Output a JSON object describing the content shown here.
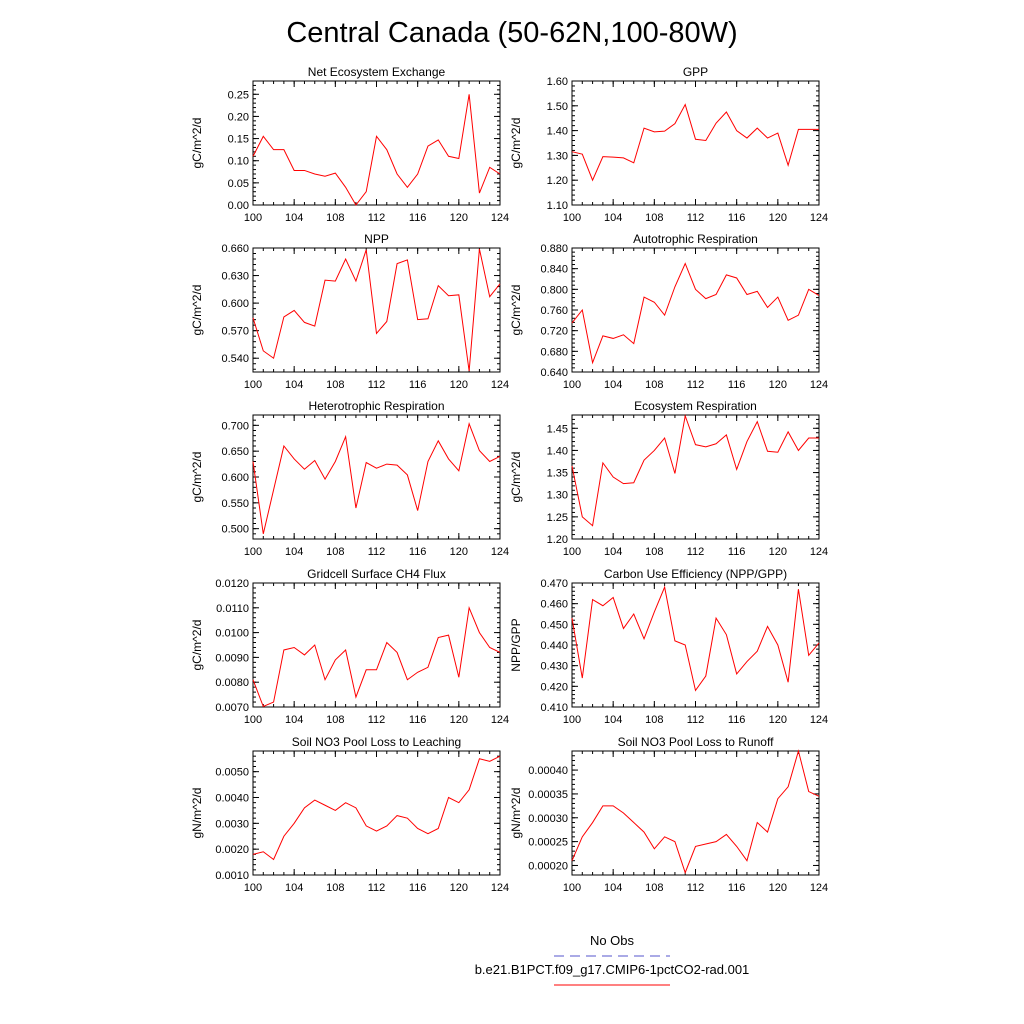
{
  "title": "Central Canada (50-62N,100-80W)",
  "colors": {
    "series": "#ff0000",
    "obs": "#5555cc",
    "axis": "#000000"
  },
  "legend": {
    "obs_label": "No Obs",
    "series_label": "b.e21.B1PCT.f09_g17.CMIP6-1pctCO2-rad.001"
  },
  "chart_data": [
    {
      "type": "line",
      "title": "Net Ecosystem Exchange",
      "ylabel": "gC/m^2/d",
      "xlim": [
        100,
        124
      ],
      "ylim": [
        0.0,
        0.28
      ],
      "xticks": [
        100,
        104,
        108,
        112,
        116,
        120,
        124
      ],
      "xtick_labels": [
        "100",
        "104",
        "108",
        "112",
        "116",
        "120",
        "124"
      ],
      "yticks": [
        0.0,
        0.05,
        0.1,
        0.15,
        0.2,
        0.25
      ],
      "ytick_labels": [
        "0.00",
        "0.05",
        "0.10",
        "0.15",
        "0.20",
        "0.25"
      ],
      "x": [
        100,
        101,
        102,
        103,
        104,
        105,
        106,
        107,
        108,
        109,
        110,
        111,
        112,
        113,
        114,
        115,
        116,
        117,
        118,
        119,
        120,
        121,
        122,
        123,
        124
      ],
      "values": [
        0.11,
        0.155,
        0.125,
        0.125,
        0.078,
        0.078,
        0.07,
        0.065,
        0.072,
        0.04,
        0.0,
        0.03,
        0.155,
        0.125,
        0.07,
        0.04,
        0.07,
        0.133,
        0.147,
        0.11,
        0.105,
        0.25,
        0.027,
        0.085,
        0.07
      ]
    },
    {
      "type": "line",
      "title": "GPP",
      "ylabel": "gC/m^2/d",
      "xlim": [
        100,
        124
      ],
      "ylim": [
        1.1,
        1.6
      ],
      "xticks": [
        100,
        104,
        108,
        112,
        116,
        120,
        124
      ],
      "xtick_labels": [
        "100",
        "104",
        "108",
        "112",
        "116",
        "120",
        "124"
      ],
      "yticks": [
        1.1,
        1.2,
        1.3,
        1.4,
        1.5,
        1.6
      ],
      "ytick_labels": [
        "1.10",
        "1.20",
        "1.30",
        "1.40",
        "1.50",
        "1.60"
      ],
      "x": [
        100,
        101,
        102,
        103,
        104,
        105,
        106,
        107,
        108,
        109,
        110,
        111,
        112,
        113,
        114,
        115,
        116,
        117,
        118,
        119,
        120,
        121,
        122,
        123,
        124
      ],
      "values": [
        1.315,
        1.305,
        1.2,
        1.295,
        1.293,
        1.29,
        1.27,
        1.41,
        1.395,
        1.398,
        1.428,
        1.505,
        1.365,
        1.36,
        1.43,
        1.475,
        1.4,
        1.37,
        1.41,
        1.37,
        1.39,
        1.26,
        1.405,
        1.405,
        1.405
      ]
    },
    {
      "type": "line",
      "title": "NPP",
      "ylabel": "gC/m^2/d",
      "xlim": [
        100,
        124
      ],
      "ylim": [
        0.525,
        0.66
      ],
      "xticks": [
        100,
        104,
        108,
        112,
        116,
        120,
        124
      ],
      "xtick_labels": [
        "100",
        "104",
        "108",
        "112",
        "116",
        "120",
        "124"
      ],
      "yticks": [
        0.54,
        0.57,
        0.6,
        0.63,
        0.66
      ],
      "ytick_labels": [
        "0.540",
        "0.570",
        "0.600",
        "0.630",
        "0.660"
      ],
      "x": [
        100,
        101,
        102,
        103,
        104,
        105,
        106,
        107,
        108,
        109,
        110,
        111,
        112,
        113,
        114,
        115,
        116,
        117,
        118,
        119,
        120,
        121,
        122,
        123,
        124
      ],
      "values": [
        0.584,
        0.548,
        0.54,
        0.585,
        0.592,
        0.579,
        0.575,
        0.625,
        0.624,
        0.648,
        0.624,
        0.658,
        0.567,
        0.58,
        0.643,
        0.647,
        0.582,
        0.583,
        0.619,
        0.608,
        0.609,
        0.526,
        0.659,
        0.607,
        0.621
      ]
    },
    {
      "type": "line",
      "title": "Autotrophic Respiration",
      "ylabel": "gC/m^2/d",
      "xlim": [
        100,
        124
      ],
      "ylim": [
        0.64,
        0.88
      ],
      "xticks": [
        100,
        104,
        108,
        112,
        116,
        120,
        124
      ],
      "xtick_labels": [
        "100",
        "104",
        "108",
        "112",
        "116",
        "120",
        "124"
      ],
      "yticks": [
        0.64,
        0.68,
        0.72,
        0.76,
        0.8,
        0.84,
        0.88
      ],
      "ytick_labels": [
        "0.640",
        "0.680",
        "0.720",
        "0.760",
        "0.800",
        "0.840",
        "0.880"
      ],
      "x": [
        100,
        101,
        102,
        103,
        104,
        105,
        106,
        107,
        108,
        109,
        110,
        111,
        112,
        113,
        114,
        115,
        116,
        117,
        118,
        119,
        120,
        121,
        122,
        123,
        124
      ],
      "values": [
        0.735,
        0.76,
        0.658,
        0.71,
        0.705,
        0.712,
        0.695,
        0.785,
        0.775,
        0.75,
        0.805,
        0.85,
        0.8,
        0.782,
        0.79,
        0.828,
        0.822,
        0.79,
        0.796,
        0.765,
        0.785,
        0.74,
        0.75,
        0.8,
        0.788
      ]
    },
    {
      "type": "line",
      "title": "Heterotrophic Respiration",
      "ylabel": "gC/m^2/d",
      "xlim": [
        100,
        124
      ],
      "ylim": [
        0.48,
        0.72
      ],
      "xticks": [
        100,
        104,
        108,
        112,
        116,
        120,
        124
      ],
      "xtick_labels": [
        "100",
        "104",
        "108",
        "112",
        "116",
        "120",
        "124"
      ],
      "yticks": [
        0.5,
        0.55,
        0.6,
        0.65,
        0.7
      ],
      "ytick_labels": [
        "0.500",
        "0.550",
        "0.600",
        "0.650",
        "0.700"
      ],
      "x": [
        100,
        101,
        102,
        103,
        104,
        105,
        106,
        107,
        108,
        109,
        110,
        111,
        112,
        113,
        114,
        115,
        116,
        117,
        118,
        119,
        120,
        121,
        122,
        123,
        124
      ],
      "values": [
        0.63,
        0.49,
        0.575,
        0.66,
        0.635,
        0.615,
        0.632,
        0.596,
        0.63,
        0.678,
        0.54,
        0.628,
        0.617,
        0.625,
        0.623,
        0.604,
        0.535,
        0.63,
        0.67,
        0.635,
        0.612,
        0.703,
        0.651,
        0.63,
        0.64
      ]
    },
    {
      "type": "line",
      "title": "Ecosystem Respiration",
      "ylabel": "gC/m^2/d",
      "xlim": [
        100,
        124
      ],
      "ylim": [
        1.2,
        1.48
      ],
      "xticks": [
        100,
        104,
        108,
        112,
        116,
        120,
        124
      ],
      "xtick_labels": [
        "100",
        "104",
        "108",
        "112",
        "116",
        "120",
        "124"
      ],
      "yticks": [
        1.2,
        1.25,
        1.3,
        1.35,
        1.4,
        1.45
      ],
      "ytick_labels": [
        "1.20",
        "1.25",
        "1.30",
        "1.35",
        "1.40",
        "1.45"
      ],
      "x": [
        100,
        101,
        102,
        103,
        104,
        105,
        106,
        107,
        108,
        109,
        110,
        111,
        112,
        113,
        114,
        115,
        116,
        117,
        118,
        119,
        120,
        121,
        122,
        123,
        124
      ],
      "values": [
        1.365,
        1.25,
        1.23,
        1.372,
        1.34,
        1.325,
        1.327,
        1.378,
        1.4,
        1.428,
        1.348,
        1.478,
        1.413,
        1.408,
        1.415,
        1.435,
        1.357,
        1.42,
        1.465,
        1.398,
        1.396,
        1.442,
        1.4,
        1.428,
        1.428
      ]
    },
    {
      "type": "line",
      "title": "Gridcell Surface CH4 Flux",
      "ylabel": "gC/m^2/d",
      "xlim": [
        100,
        124
      ],
      "ylim": [
        0.007,
        0.012
      ],
      "xticks": [
        100,
        104,
        108,
        112,
        116,
        120,
        124
      ],
      "xtick_labels": [
        "100",
        "104",
        "108",
        "112",
        "116",
        "120",
        "124"
      ],
      "yticks": [
        0.007,
        0.008,
        0.009,
        0.01,
        0.011,
        0.012
      ],
      "ytick_labels": [
        "0.0070",
        "0.0080",
        "0.0090",
        "0.0100",
        "0.0110",
        "0.0120"
      ],
      "x": [
        100,
        101,
        102,
        103,
        104,
        105,
        106,
        107,
        108,
        109,
        110,
        111,
        112,
        113,
        114,
        115,
        116,
        117,
        118,
        119,
        120,
        121,
        122,
        123,
        124
      ],
      "values": [
        0.0081,
        0.00702,
        0.0072,
        0.0093,
        0.0094,
        0.0091,
        0.0095,
        0.0081,
        0.0089,
        0.0093,
        0.0074,
        0.0085,
        0.0085,
        0.0096,
        0.0092,
        0.0081,
        0.0084,
        0.0086,
        0.0098,
        0.0099,
        0.0082,
        0.011,
        0.01,
        0.0094,
        0.0092
      ]
    },
    {
      "type": "line",
      "title": "Carbon Use Efficiency (NPP/GPP)",
      "ylabel": "NPP/GPP",
      "xlim": [
        100,
        124
      ],
      "ylim": [
        0.41,
        0.47
      ],
      "xticks": [
        100,
        104,
        108,
        112,
        116,
        120,
        124
      ],
      "xtick_labels": [
        "100",
        "104",
        "108",
        "112",
        "116",
        "120",
        "124"
      ],
      "yticks": [
        0.41,
        0.42,
        0.43,
        0.44,
        0.45,
        0.46,
        0.47
      ],
      "ytick_labels": [
        "0.410",
        "0.420",
        "0.430",
        "0.440",
        "0.450",
        "0.460",
        "0.470"
      ],
      "x": [
        100,
        101,
        102,
        103,
        104,
        105,
        106,
        107,
        108,
        109,
        110,
        111,
        112,
        113,
        114,
        115,
        116,
        117,
        118,
        119,
        120,
        121,
        122,
        123,
        124
      ],
      "values": [
        0.453,
        0.424,
        0.462,
        0.459,
        0.463,
        0.448,
        0.455,
        0.443,
        0.456,
        0.468,
        0.442,
        0.44,
        0.418,
        0.425,
        0.453,
        0.445,
        0.426,
        0.432,
        0.437,
        0.449,
        0.44,
        0.422,
        0.467,
        0.435,
        0.441
      ]
    },
    {
      "type": "line",
      "title": "Soil NO3 Pool Loss to Leaching",
      "ylabel": "gN/m^2/d",
      "xlim": [
        100,
        124
      ],
      "ylim": [
        0.001,
        0.0058
      ],
      "xticks": [
        100,
        104,
        108,
        112,
        116,
        120,
        124
      ],
      "xtick_labels": [
        "100",
        "104",
        "108",
        "112",
        "116",
        "120",
        "124"
      ],
      "yticks": [
        0.001,
        0.002,
        0.003,
        0.004,
        0.005
      ],
      "ytick_labels": [
        "0.0010",
        "0.0020",
        "0.0030",
        "0.0040",
        "0.0050"
      ],
      "x": [
        100,
        101,
        102,
        103,
        104,
        105,
        106,
        107,
        108,
        109,
        110,
        111,
        112,
        113,
        114,
        115,
        116,
        117,
        118,
        119,
        120,
        121,
        122,
        123,
        124
      ],
      "values": [
        0.0018,
        0.0019,
        0.0016,
        0.0025,
        0.003,
        0.0036,
        0.0039,
        0.0037,
        0.0035,
        0.0038,
        0.0036,
        0.0029,
        0.0027,
        0.0029,
        0.0033,
        0.0032,
        0.0028,
        0.0026,
        0.0028,
        0.004,
        0.0038,
        0.0043,
        0.0055,
        0.0054,
        0.0056
      ]
    },
    {
      "type": "line",
      "title": "Soil NO3 Pool Loss to Runoff",
      "ylabel": "gN/m^2/d",
      "xlim": [
        100,
        124
      ],
      "ylim": [
        0.00018,
        0.00044
      ],
      "xticks": [
        100,
        104,
        108,
        112,
        116,
        120,
        124
      ],
      "xtick_labels": [
        "100",
        "104",
        "108",
        "112",
        "116",
        "120",
        "124"
      ],
      "yticks": [
        0.0002,
        0.00025,
        0.0003,
        0.00035,
        0.0004
      ],
      "ytick_labels": [
        "0.00020",
        "0.00025",
        "0.00030",
        "0.00035",
        "0.00040"
      ],
      "x": [
        100,
        101,
        102,
        103,
        104,
        105,
        106,
        107,
        108,
        109,
        110,
        111,
        112,
        113,
        114,
        115,
        116,
        117,
        118,
        119,
        120,
        121,
        122,
        123,
        124
      ],
      "values": [
        0.00021,
        0.00026,
        0.00029,
        0.000325,
        0.000325,
        0.00031,
        0.00029,
        0.00027,
        0.000235,
        0.00026,
        0.00025,
        0.000185,
        0.00024,
        0.000245,
        0.00025,
        0.000265,
        0.00024,
        0.00021,
        0.00029,
        0.00027,
        0.00034,
        0.000365,
        0.00044,
        0.000355,
        0.000345
      ]
    }
  ]
}
